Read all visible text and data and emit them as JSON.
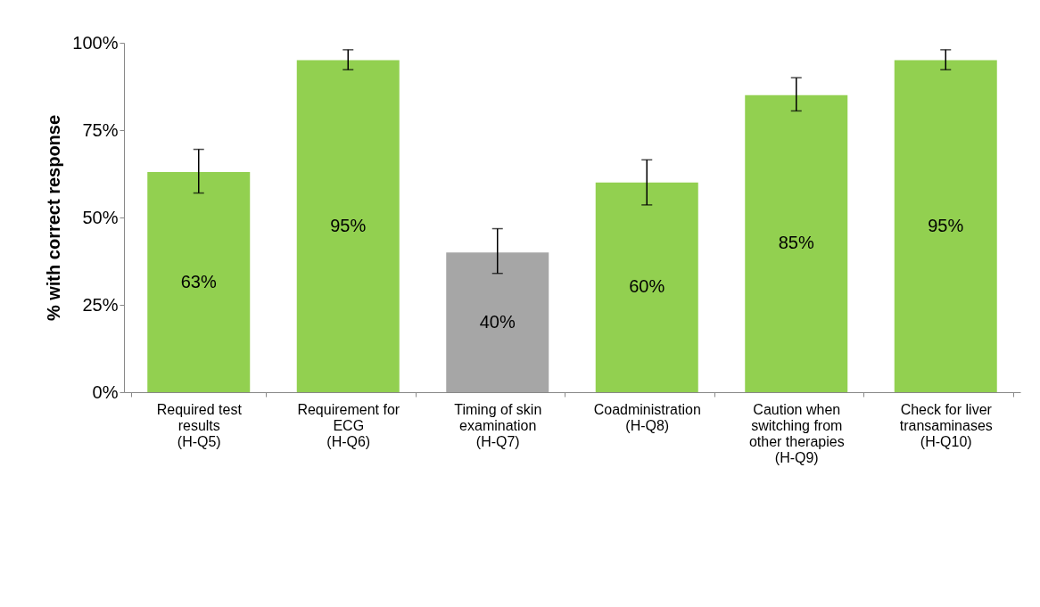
{
  "chart_data": {
    "type": "bar",
    "ylabel": "% with correct response",
    "categories": [
      "Required test\nresults\n(H-Q5)",
      "Requirement for\nECG\n(H-Q6)",
      "Timing of skin\nexamination\n(H-Q7)",
      "Coadministration\n(H-Q8)",
      "Caution when\nswitching from\nother therapies\n(H-Q9)",
      "Check for liver\ntransaminases\n(H-Q10)"
    ],
    "values": [
      63,
      95,
      40,
      60,
      85,
      95
    ],
    "colors": [
      "#92d050",
      "#92d050",
      "#a6a6a6",
      "#92d050",
      "#92d050",
      "#92d050"
    ],
    "value_labels": [
      "63%",
      "95%",
      "40%",
      "60%",
      "85%",
      "95%"
    ],
    "errors": [
      [
        57,
        69.5
      ],
      [
        92.3,
        98
      ],
      [
        34,
        46.8
      ],
      [
        53.6,
        66.5
      ],
      [
        80.5,
        90
      ],
      [
        92.3,
        98
      ]
    ],
    "ylim": [
      0,
      100
    ],
    "yticks": [
      {
        "value": 0,
        "label": "0%"
      },
      {
        "value": 25,
        "label": "25%"
      },
      {
        "value": 50,
        "label": "50%"
      },
      {
        "value": 75,
        "label": "75%"
      },
      {
        "value": 100,
        "label": "100%"
      }
    ],
    "grid": false
  }
}
